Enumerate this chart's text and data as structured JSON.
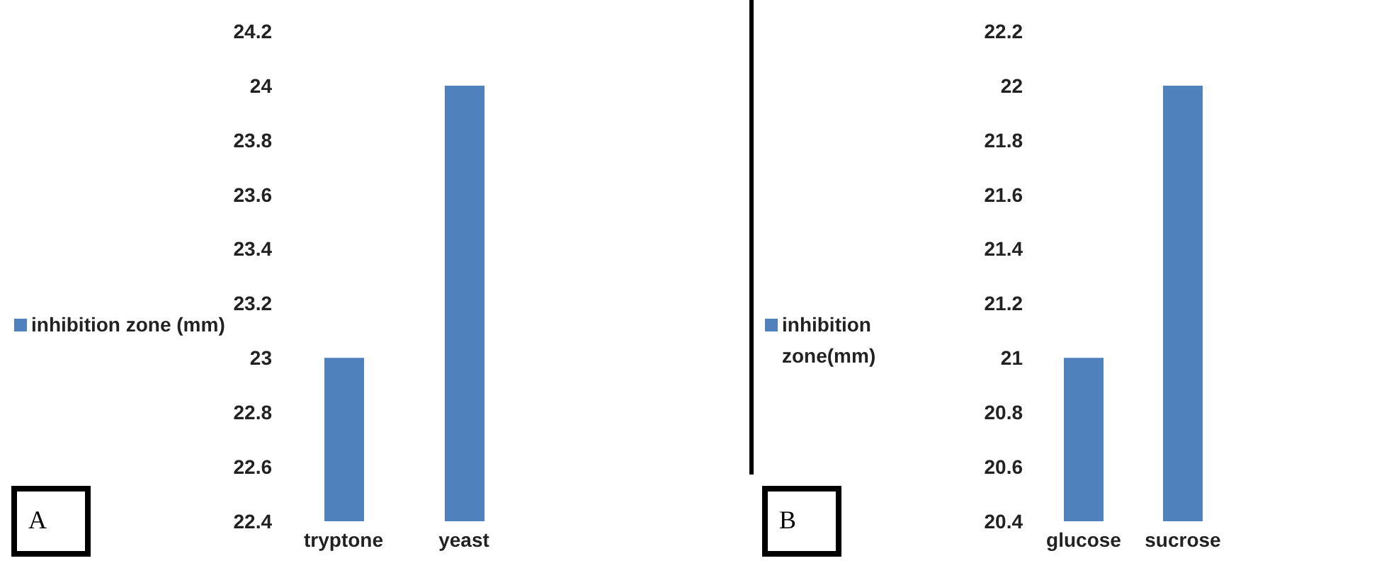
{
  "chart_data": [
    {
      "type": "bar",
      "categories": [
        "tryptone",
        "yeast"
      ],
      "series": [
        {
          "name": "inhibition zone (mm)",
          "color": "#4f81bd",
          "values": [
            23,
            24
          ]
        }
      ],
      "ylim": [
        22.4,
        24.2
      ],
      "yticks": [
        22.4,
        22.6,
        22.8,
        23,
        23.2,
        23.4,
        23.6,
        23.8,
        24,
        24.2
      ],
      "legend": "left",
      "annotations": [
        "A"
      ]
    },
    {
      "type": "bar",
      "categories": [
        "glucose",
        "sucrose"
      ],
      "series": [
        {
          "name": "inhibition zone(mm)",
          "color": "#4f81bd",
          "values": [
            21,
            22
          ]
        }
      ],
      "ylim": [
        20.4,
        22.2
      ],
      "yticks": [
        20.4,
        20.6,
        20.8,
        21,
        21.2,
        21.4,
        21.6,
        21.8,
        22,
        22.2
      ],
      "legend": "left",
      "annotations": [
        "B"
      ]
    }
  ]
}
